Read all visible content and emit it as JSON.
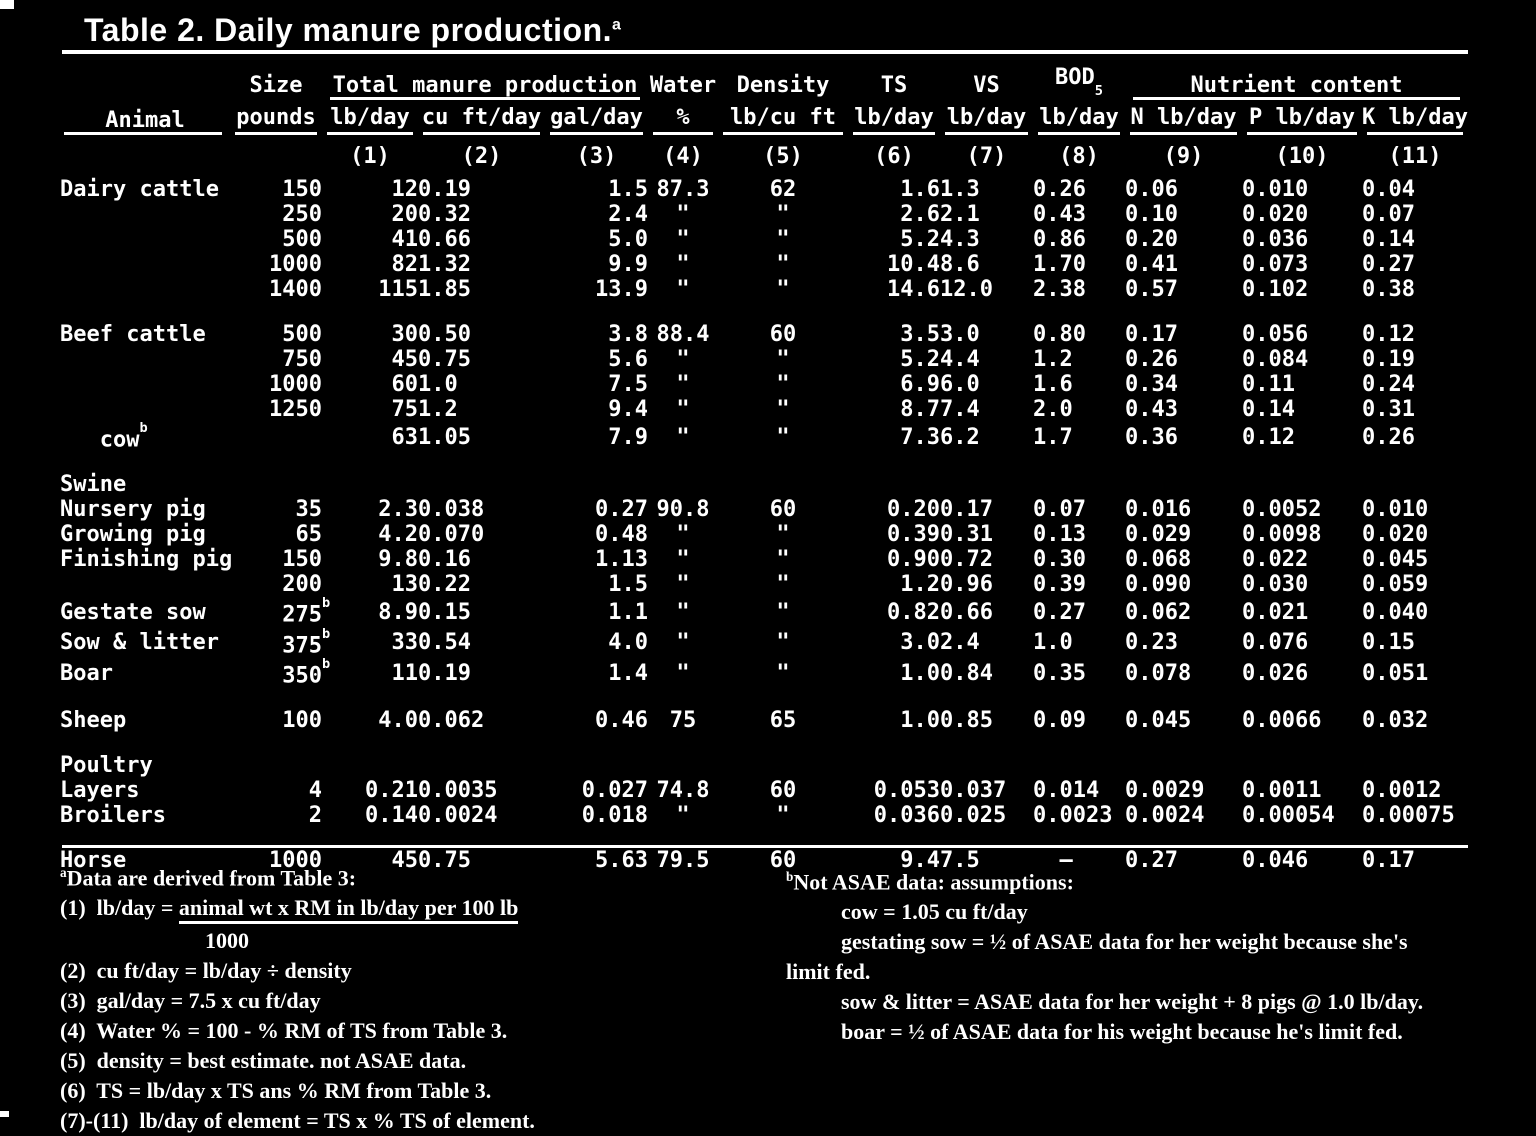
{
  "colors": {
    "background": "#000000",
    "text": "#ffffff"
  },
  "title": {
    "text": "Table 2. Daily manure production.",
    "sup": "a"
  },
  "table": {
    "groups": {
      "total": "Total manure production",
      "nutrient": "Nutrient content"
    },
    "headers": {
      "animal": "Animal",
      "size": "Size",
      "pounds": "pounds",
      "lb_day": "lb/day",
      "cuft_day": "cu ft/day",
      "gal_day": "gal/day",
      "water": "Water",
      "percent": "%",
      "density": "Density",
      "lb_cuft": "lb/cu ft",
      "ts": "TS",
      "vs": "VS",
      "bod": "BOD",
      "bod_sub": "5",
      "n": "N lb/day",
      "p": "P lb/day",
      "k": "K lb/day"
    },
    "col_numbers": [
      "(1)",
      "(2)",
      "(3)",
      "(4)",
      "(5)",
      "(6)",
      "(7)",
      "(8)",
      "(9)",
      "(10)",
      "(11)"
    ],
    "rows": [
      {
        "animal": "Dairy cattle",
        "cells": [
          "150",
          "12",
          "0.19",
          "1.5",
          "87.3",
          "62",
          "1.6",
          "1.3",
          "0.26",
          "0.06",
          "0.010",
          "0.04"
        ]
      },
      {
        "animal": "",
        "cells": [
          "250",
          "20",
          "0.32",
          "2.4",
          "\"",
          "\"",
          "2.6",
          "2.1",
          "0.43",
          "0.10",
          "0.020",
          "0.07"
        ]
      },
      {
        "animal": "",
        "cells": [
          "500",
          "41",
          "0.66",
          "5.0",
          "\"",
          "\"",
          "5.2",
          "4.3",
          "0.86",
          "0.20",
          "0.036",
          "0.14"
        ]
      },
      {
        "animal": "",
        "cells": [
          "1000",
          "82",
          "1.32",
          "9.9",
          "\"",
          "\"",
          "10.4",
          "8.6",
          "1.70",
          "0.41",
          "0.073",
          "0.27"
        ]
      },
      {
        "animal": "",
        "cells": [
          "1400",
          "115",
          "1.85",
          "13.9",
          "\"",
          "\"",
          "14.6",
          "12.0",
          "2.38",
          "0.57",
          "0.102",
          "0.38"
        ]
      },
      {
        "type": "spacer"
      },
      {
        "animal": "Beef cattle",
        "cells": [
          "500",
          "30",
          "0.50",
          "3.8",
          "88.4",
          "60",
          "3.5",
          "3.0",
          "0.80",
          "0.17",
          "0.056",
          "0.12"
        ]
      },
      {
        "animal": "",
        "cells": [
          "750",
          "45",
          "0.75",
          "5.6",
          "\"",
          "\"",
          "5.2",
          "4.4",
          "1.2",
          "0.26",
          "0.084",
          "0.19"
        ]
      },
      {
        "animal": "",
        "cells": [
          "1000",
          "60",
          "1.0",
          "7.5",
          "\"",
          "\"",
          "6.9",
          "6.0",
          "1.6",
          "0.34",
          "0.11",
          "0.24"
        ]
      },
      {
        "animal": "",
        "cells": [
          "1250",
          "75",
          "1.2",
          "9.4",
          "\"",
          "\"",
          "8.7",
          "7.4",
          "2.0",
          "0.43",
          "0.14",
          "0.31"
        ]
      },
      {
        "animal": "   cow^b",
        "cells": [
          "",
          "63",
          "1.05",
          "7.9",
          "\"",
          "\"",
          "7.3",
          "6.2",
          "1.7",
          "0.36",
          "0.12",
          "0.26"
        ]
      },
      {
        "type": "spacer"
      },
      {
        "animal": "Swine",
        "cells": [],
        "section": true
      },
      {
        "animal": "Nursery pig",
        "cells": [
          "35",
          "2.3",
          "0.038",
          "0.27",
          "90.8",
          "60",
          "0.20",
          "0.17",
          "0.07",
          "0.016",
          "0.0052",
          "0.010"
        ]
      },
      {
        "animal": "Growing pig",
        "cells": [
          "65",
          "4.2",
          "0.070",
          "0.48",
          "\"",
          "\"",
          "0.39",
          "0.31",
          "0.13",
          "0.029",
          "0.0098",
          "0.020"
        ]
      },
      {
        "animal": "Finishing pig",
        "cells": [
          "150",
          "9.8",
          "0.16",
          "1.13",
          "\"",
          "\"",
          "0.90",
          "0.72",
          "0.30",
          "0.068",
          "0.022",
          "0.045"
        ]
      },
      {
        "animal": "",
        "cells": [
          "200",
          "13",
          "0.22",
          "1.5",
          "\"",
          "\"",
          "1.2",
          "0.96",
          "0.39",
          "0.090",
          "0.030",
          "0.059"
        ]
      },
      {
        "animal": "Gestate sow",
        "cells": [
          "275^b",
          "8.9",
          "0.15",
          "1.1",
          "\"",
          "\"",
          "0.82",
          "0.66",
          "0.27",
          "0.062",
          "0.021",
          "0.040"
        ]
      },
      {
        "animal": "Sow & litter",
        "cells": [
          "375^b",
          "33",
          "0.54",
          "4.0",
          "\"",
          "\"",
          "3.0",
          "2.4",
          "1.0",
          "0.23",
          "0.076",
          "0.15"
        ]
      },
      {
        "animal": "Boar",
        "cells": [
          "350^b",
          "11",
          "0.19",
          "1.4",
          "\"",
          "\"",
          "1.0",
          "0.84",
          "0.35",
          "0.078",
          "0.026",
          "0.051"
        ]
      },
      {
        "type": "spacer"
      },
      {
        "animal": "Sheep",
        "cells": [
          "100",
          "4.0",
          "0.062",
          "0.46",
          "75",
          "65",
          "1.0",
          "0.85",
          "0.09",
          "0.045",
          "0.0066",
          "0.032"
        ]
      },
      {
        "type": "spacer"
      },
      {
        "animal": "Poultry",
        "cells": [],
        "section": true
      },
      {
        "animal": "Layers",
        "cells": [
          "4",
          "0.21",
          "0.0035",
          "0.027",
          "74.8",
          "60",
          "0.053",
          "0.037",
          "0.014",
          "0.0029",
          "0.0011",
          "0.0012"
        ]
      },
      {
        "animal": "Broilers",
        "cells": [
          "2",
          "0.14",
          "0.0024",
          "0.018",
          "\"",
          "\"",
          "0.036",
          "0.025",
          "0.0023",
          "0.0024",
          "0.00054",
          "0.00075"
        ]
      },
      {
        "type": "spacer"
      },
      {
        "animal": "Horse",
        "cells": [
          "1000",
          "45",
          "0.75",
          "5.63",
          "79.5",
          "60",
          "9.4",
          "7.5",
          "  –",
          "0.27",
          "0.046",
          "0.17"
        ]
      }
    ]
  },
  "footnotes": {
    "a": {
      "marker": "a",
      "intro": "Data are derived from Table 3:",
      "f1_prefix": "(1)  lb/day = ",
      "f1_num": "animal wt x RM in lb/day per 100 lb",
      "f1_den": "1000",
      "lines": [
        "(2)  cu ft/day = lb/day ÷ density",
        "(3)  gal/day = 7.5 x cu ft/day",
        "(4)  Water % = 100 - % RM of TS from Table 3.",
        "(5)  density = best estimate. not ASAE data.",
        "(6)  TS = lb/day x TS ans % RM from Table 3.",
        "(7)-(11)  lb/day of element = TS x % TS of element."
      ]
    },
    "b": {
      "marker": "b",
      "intro": "Not ASAE data: assumptions:",
      "lines": [
        "cow = 1.05 cu ft/day",
        "gestating sow = ½ of ASAE data for her weight because she's",
        "limit fed.",
        "sow & litter = ASAE data for her weight + 8 pigs @ 1.0 lb/day.",
        "boar = ½ of ASAE data for his weight because he's limit fed."
      ]
    }
  }
}
